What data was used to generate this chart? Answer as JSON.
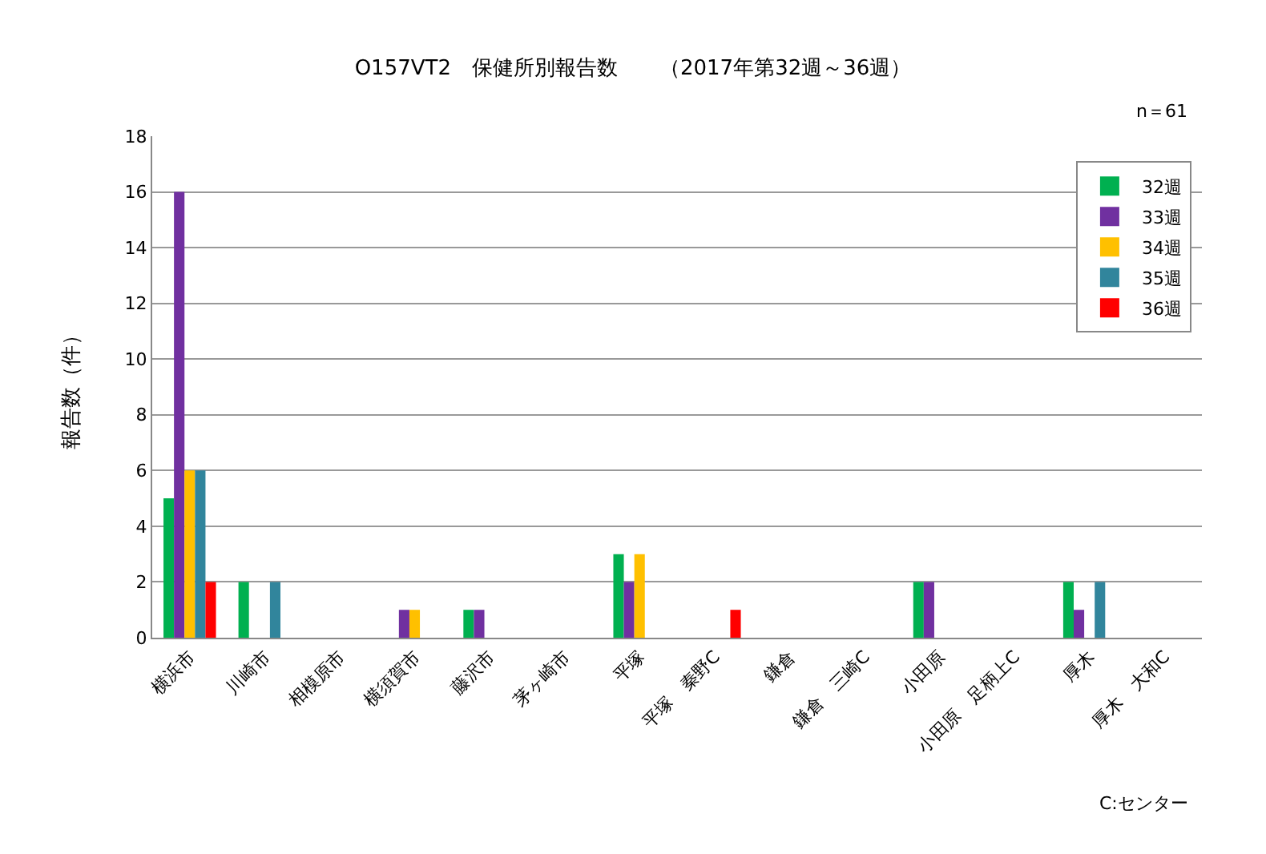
{
  "chart_data": {
    "type": "bar",
    "title": "O157VT2　保健所別報告数　　（2017年第32週～36週）",
    "ylabel": "報告数（件）",
    "categories": [
      "横浜市",
      "川崎市",
      "相模原市",
      "横須賀市",
      "藤沢市",
      "茅ヶ崎市",
      "平塚",
      "平塚　秦野C",
      "鎌倉",
      "鎌倉　三崎C",
      "小田原",
      "小田原　足柄上C",
      "厚木",
      "厚木　大和C"
    ],
    "series": [
      {
        "name": "32週",
        "color": "#00b050",
        "values": [
          5,
          2,
          0,
          0,
          1,
          0,
          3,
          0,
          0,
          0,
          2,
          0,
          2,
          0
        ]
      },
      {
        "name": "33週",
        "color": "#7030a0",
        "values": [
          16,
          0,
          0,
          1,
          1,
          0,
          2,
          0,
          0,
          0,
          2,
          0,
          1,
          0
        ]
      },
      {
        "name": "34週",
        "color": "#ffc000",
        "values": [
          6,
          0,
          0,
          1,
          0,
          0,
          3,
          0,
          0,
          0,
          0,
          0,
          0,
          0
        ]
      },
      {
        "name": "35週",
        "color": "#31859c",
        "values": [
          6,
          2,
          0,
          0,
          0,
          0,
          0,
          0,
          0,
          0,
          0,
          0,
          2,
          0
        ]
      },
      {
        "name": "36週",
        "color": "#ff0000",
        "values": [
          2,
          0,
          0,
          0,
          0,
          0,
          0,
          1,
          0,
          0,
          0,
          0,
          0,
          0
        ]
      }
    ],
    "ylim": [
      0,
      18
    ],
    "yticks": [
      0,
      2,
      4,
      6,
      8,
      10,
      12,
      14,
      16,
      18
    ],
    "grid": "y",
    "legend": "top right",
    "annotations": [
      "n＝61",
      "C:センター"
    ]
  }
}
